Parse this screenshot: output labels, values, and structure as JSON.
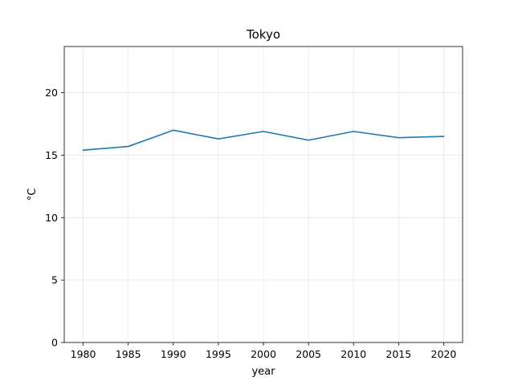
{
  "chart_data": {
    "type": "line",
    "title": "Tokyo",
    "xlabel": "year",
    "ylabel": "°C",
    "x": [
      1980,
      1985,
      1990,
      1995,
      2000,
      2005,
      2010,
      2015,
      2020
    ],
    "series": [
      {
        "name": "Tokyo",
        "color": "#1f77b4",
        "values": [
          15.4,
          15.7,
          17.0,
          16.3,
          16.9,
          16.2,
          16.9,
          16.4,
          16.5
        ]
      }
    ],
    "xlim": [
      1977.9,
      2022.1
    ],
    "ylim": [
      0,
      23.7
    ],
    "xticks": [
      1980,
      1985,
      1990,
      1995,
      2000,
      2005,
      2010,
      2015,
      2020
    ],
    "yticks": [
      0,
      5,
      10,
      15,
      20
    ],
    "grid": true
  }
}
